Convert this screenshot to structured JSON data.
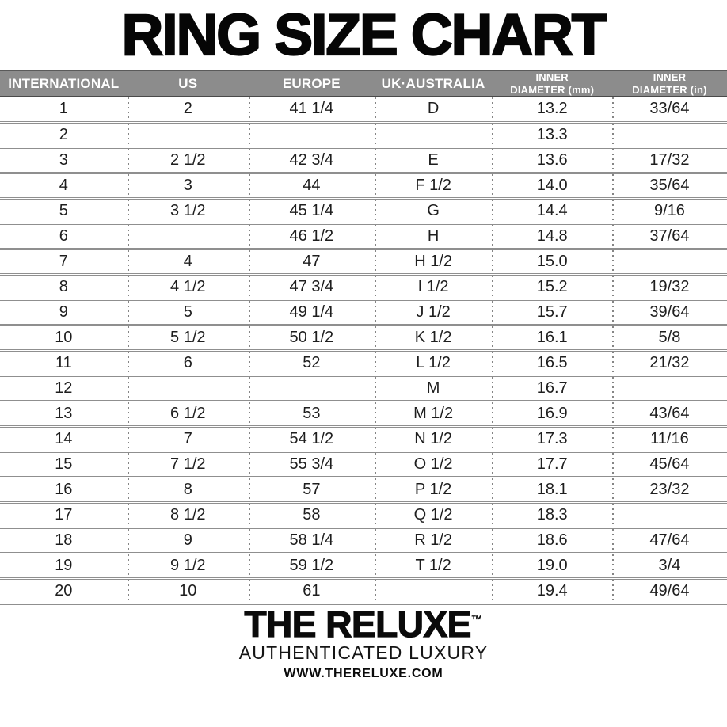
{
  "chart_data": {
    "type": "table",
    "title": "RING SIZE CHART",
    "columns": [
      "INTERNATIONAL",
      "US",
      "EUROPE",
      "UK·AUSTRALIA",
      "INNER\nDIAMETER (mm)",
      "INNER\nDIAMETER (in)"
    ],
    "rows": [
      [
        "1",
        "2",
        "41 1/4",
        "D",
        "13.2",
        "33/64"
      ],
      [
        "2",
        "",
        "",
        "",
        "13.3",
        ""
      ],
      [
        "3",
        "2 1/2",
        "42 3/4",
        "E",
        "13.6",
        "17/32"
      ],
      [
        "4",
        "3",
        "44",
        "F 1/2",
        "14.0",
        "35/64"
      ],
      [
        "5",
        "3 1/2",
        "45 1/4",
        "G",
        "14.4",
        "9/16"
      ],
      [
        "6",
        "",
        "46 1/2",
        "H",
        "14.8",
        "37/64"
      ],
      [
        "7",
        "4",
        "47",
        "H 1/2",
        "15.0",
        ""
      ],
      [
        "8",
        "4 1/2",
        "47 3/4",
        "I 1/2",
        "15.2",
        "19/32"
      ],
      [
        "9",
        "5",
        "49 1/4",
        "J 1/2",
        "15.7",
        "39/64"
      ],
      [
        "10",
        "5 1/2",
        "50 1/2",
        "K 1/2",
        "16.1",
        "5/8"
      ],
      [
        "11",
        "6",
        "52",
        "L 1/2",
        "16.5",
        "21/32"
      ],
      [
        "12",
        "",
        "",
        "M",
        "16.7",
        ""
      ],
      [
        "13",
        "6 1/2",
        "53",
        "M 1/2",
        "16.9",
        "43/64"
      ],
      [
        "14",
        "7",
        "54 1/2",
        "N 1/2",
        "17.3",
        "11/16"
      ],
      [
        "15",
        "7 1/2",
        "55 3/4",
        "O 1/2",
        "17.7",
        "45/64"
      ],
      [
        "16",
        "8",
        "57",
        "P 1/2",
        "18.1",
        "23/32"
      ],
      [
        "17",
        "8 1/2",
        "58",
        "Q 1/2",
        "18.3",
        ""
      ],
      [
        "18",
        "9",
        "58 1/4",
        "R 1/2",
        "18.6",
        "47/64"
      ],
      [
        "19",
        "9 1/2",
        "59 1/2",
        "T 1/2",
        "19.0",
        "3/4"
      ],
      [
        "20",
        "10",
        "61",
        "",
        "19.4",
        "49/64"
      ]
    ]
  },
  "footer": {
    "brand": "THE RELUXE",
    "trademark": "™",
    "tagline": "AUTHENTICATED LUXURY",
    "website": "WWW.THERELUXE.COM"
  },
  "colors": {
    "header_bg": "#8c8c8c",
    "header_text": "#ffffff",
    "header_edge": "#4a4a4a",
    "row_line": "#8f8f8f",
    "dot_line": "#858585",
    "text": "#1e1e1e",
    "background": "#ffffff"
  }
}
